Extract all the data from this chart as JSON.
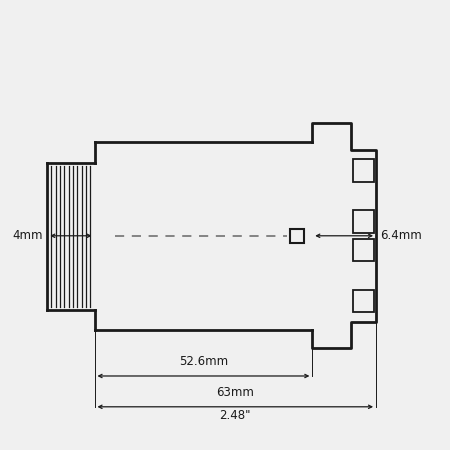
{
  "bg_color": "#f0f0f0",
  "line_color": "#1a1a1a",
  "dim_color": "#1a1a1a",
  "dash_color": "#666666",
  "font_size": 8.5,
  "label_4mm": "4mm",
  "label_52": "52.6mm",
  "label_63": "63mm",
  "label_248": "2.48\"",
  "label_64": "6.4mm"
}
